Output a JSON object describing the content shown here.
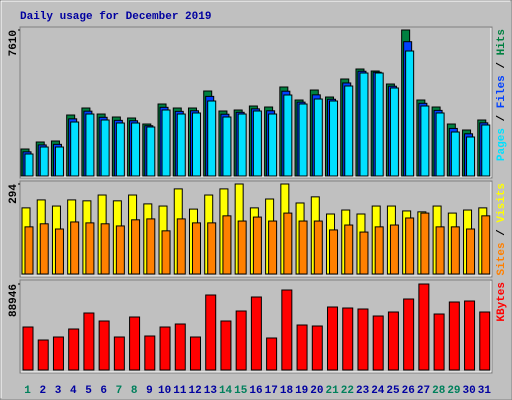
{
  "legend_separator": " / ",
  "chart_data": [
    {
      "type": "bar",
      "title": "Daily usage for December 2019",
      "ylim": [
        0,
        7610
      ],
      "yticks": [
        7610
      ],
      "series": [
        {
          "name": "Hits",
          "color": "#008040",
          "values": [
            1407,
            1772,
            1824,
            3179,
            3544,
            3231,
            3075,
            3023,
            2710,
            3753,
            3544,
            3544,
            4430,
            3388,
            3440,
            3648,
            3596,
            4639,
            3961,
            4482,
            4117,
            5056,
            5577,
            5473,
            4795,
            7610,
            3961,
            3596,
            2710,
            2397,
            2919
          ]
        },
        {
          "name": "Files",
          "color": "#0040ff",
          "values": [
            1260,
            1620,
            1650,
            2980,
            3380,
            3060,
            2900,
            2880,
            2620,
            3580,
            3370,
            3400,
            4150,
            3220,
            3320,
            3500,
            3400,
            4420,
            3850,
            4230,
            4000,
            4850,
            5460,
            5410,
            4680,
            7000,
            3790,
            3420,
            2480,
            2200,
            2770
          ]
        },
        {
          "name": "Pages",
          "color": "#00e0ff",
          "values": [
            1147,
            1511,
            1511,
            2814,
            3231,
            2919,
            2762,
            2762,
            2554,
            3440,
            3231,
            3284,
            3909,
            3075,
            3231,
            3388,
            3231,
            4222,
            3753,
            4013,
            3909,
            4691,
            5368,
            5368,
            4587,
            6515,
            3648,
            3284,
            2293,
            2033,
            2658
          ]
        }
      ]
    },
    {
      "type": "bar",
      "ylim": [
        0,
        294
      ],
      "yticks": [
        294
      ],
      "series": [
        {
          "name": "Visits",
          "color": "#ffff00",
          "values": [
            216,
            242,
            222,
            242,
            239,
            258,
            239,
            258,
            229,
            222,
            278,
            212,
            258,
            278,
            294,
            216,
            245,
            294,
            232,
            252,
            196,
            209,
            196,
            222,
            222,
            206,
            203,
            222,
            199,
            209,
            216
          ]
        },
        {
          "name": "Sites",
          "color": "#ff8000",
          "values": [
            154,
            164,
            147,
            170,
            167,
            164,
            157,
            177,
            180,
            141,
            180,
            167,
            167,
            190,
            173,
            186,
            173,
            199,
            173,
            173,
            144,
            160,
            137,
            154,
            160,
            183,
            199,
            154,
            154,
            147,
            190
          ]
        }
      ]
    },
    {
      "type": "bar",
      "ylim": [
        0,
        88946
      ],
      "yticks": [
        88946
      ],
      "categories": [
        "1",
        "2",
        "3",
        "4",
        "5",
        "6",
        "7",
        "8",
        "9",
        "10",
        "11",
        "12",
        "13",
        "14",
        "15",
        "16",
        "17",
        "18",
        "19",
        "20",
        "21",
        "22",
        "23",
        "24",
        "25",
        "26",
        "27",
        "28",
        "29",
        "30",
        "31"
      ],
      "category_colors": [
        "#00805c",
        "#0000a0",
        "#0000a0",
        "#0000a0",
        "#0000a0",
        "#0000a0",
        "#00805c",
        "#00805c",
        "#0000a0",
        "#0000a0",
        "#0000a0",
        "#0000a0",
        "#0000a0",
        "#00805c",
        "#00805c",
        "#0000a0",
        "#0000a0",
        "#0000a0",
        "#0000a0",
        "#0000a0",
        "#00805c",
        "#00805c",
        "#0000a0",
        "#0000a0",
        "#0000a0",
        "#0000a0",
        "#0000a0",
        "#00805c",
        "#00805c",
        "#0000a0",
        "#0000a0"
      ],
      "series": [
        {
          "name": "KBytes",
          "color": "#ff0000",
          "values": [
            44474,
            31029,
            34131,
            42406,
            58953,
            50680,
            34131,
            54817,
            35165,
            44474,
            47577,
            34131,
            77570,
            50680,
            61022,
            75502,
            33096,
            82742,
            46542,
            45509,
            65159,
            64125,
            63090,
            55850,
            59987,
            73434,
            88946,
            57918,
            70329,
            71365,
            59987
          ]
        }
      ]
    }
  ]
}
